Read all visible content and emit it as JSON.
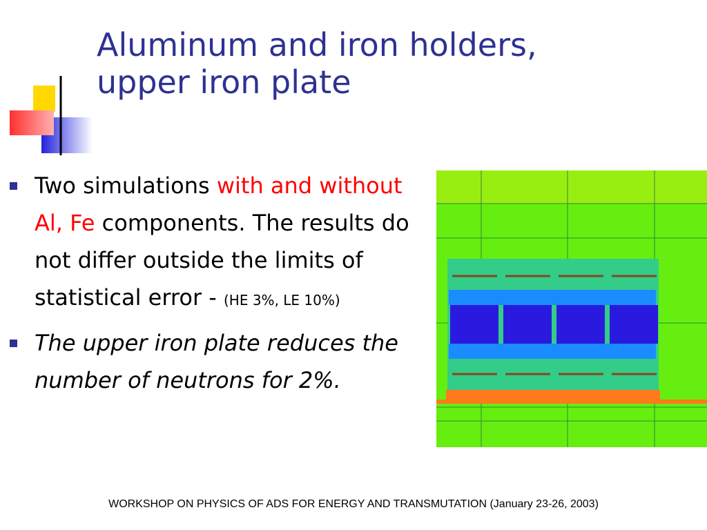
{
  "header": {
    "title_lines": [
      "Aluminum and iron holders,",
      "upper iron plate"
    ]
  },
  "bullets": [
    {
      "segments": [
        {
          "text": "Two simulations ",
          "style": "normal"
        },
        {
          "text": "with and without Al, Fe",
          "style": "red"
        },
        {
          "text": " components. The results do not differ outside the limits of statistical error - ",
          "style": "normal"
        },
        {
          "text": "(HE 3%, LE 10%)",
          "style": "small"
        }
      ]
    },
    {
      "segments": [
        {
          "text": "The upper iron plate reduces the number of neutrons for 2%.",
          "style": "italic"
        }
      ]
    }
  ],
  "footer": "WORKSHOP ON PHYSICS OF ADS FOR ENERGY AND TRANSMUTATION (January 23-26, 2003)"
}
